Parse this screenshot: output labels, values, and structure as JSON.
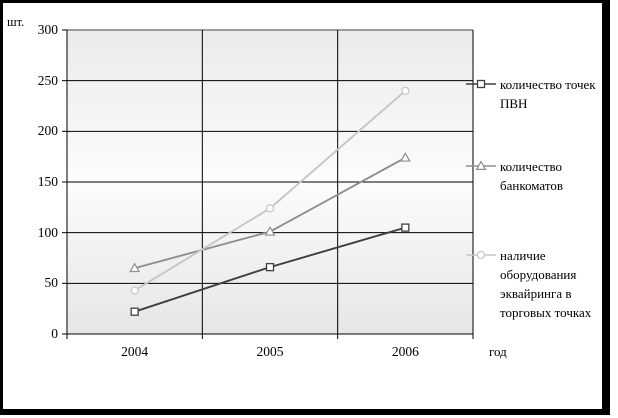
{
  "window": {
    "background": "#ffffff",
    "frame_color": "#000000"
  },
  "chart_data": {
    "type": "line",
    "y_axis_label": "шт.",
    "x_axis_label": "год",
    "categories": [
      "2004",
      "2005",
      "2006"
    ],
    "ylim": [
      0,
      300
    ],
    "y_ticks": [
      0,
      50,
      100,
      150,
      200,
      250,
      300
    ],
    "grid": true,
    "legend_position": "right",
    "plot_background": {
      "top": "#ebebeb",
      "middle": "#fcfcfc",
      "bottom": "#e6e6e6"
    },
    "gridline_color": "#000000",
    "top_border_color": "#9b9b9b",
    "series": [
      {
        "name": "количество точек ПВН",
        "marker": "square",
        "color": "#3f3f3f",
        "values": [
          22,
          66,
          105
        ]
      },
      {
        "name": "количество банкоматов",
        "marker": "triangle",
        "color": "#8e8e8e",
        "values": [
          65,
          101,
          174
        ]
      },
      {
        "name": "наличие оборудования эквайринга в торговых точках",
        "marker": "circle",
        "color": "#c6c6c6",
        "values": [
          43,
          124,
          240
        ]
      }
    ]
  }
}
